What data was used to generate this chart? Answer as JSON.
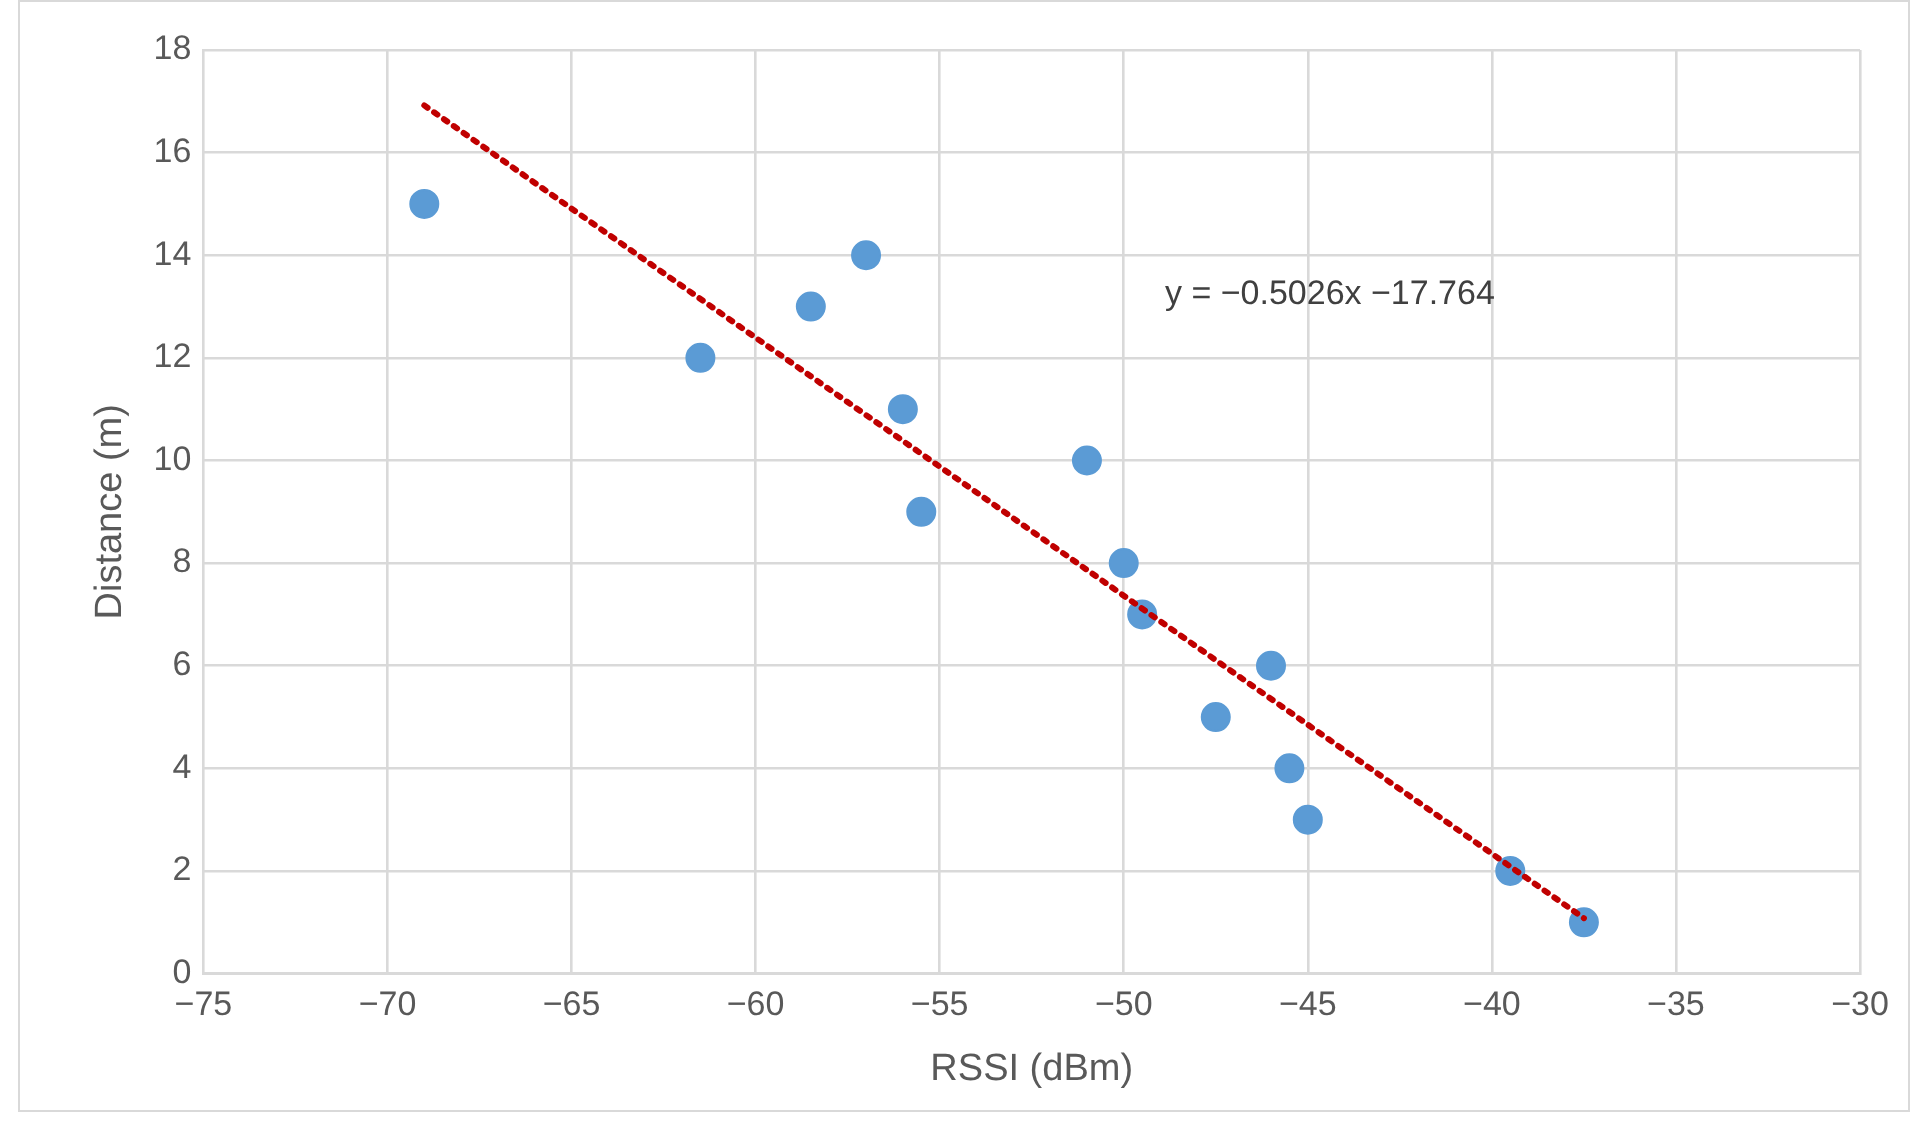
{
  "chart_data": {
    "type": "scatter",
    "xlabel": "RSSI (dBm)",
    "ylabel": "Distance (m)",
    "xlim": [
      -75,
      -30
    ],
    "xticks": [
      -75,
      -70,
      -65,
      -60,
      -55,
      -50,
      -45,
      -40,
      -35,
      -30
    ],
    "ylim": [
      0,
      18
    ],
    "yticks": [
      0,
      2,
      4,
      6,
      8,
      10,
      12,
      14,
      16,
      18
    ],
    "grid": true,
    "legend": false,
    "series": [
      {
        "marker": "circle",
        "color": "#5b9bd5",
        "x": [
          -69,
          -61.5,
          -58.5,
          -57,
          -56,
          -55.5,
          -51,
          -50,
          -49.5,
          -46,
          -47.5,
          -45.5,
          -45,
          -39.5,
          -37.5
        ],
        "values": [
          15,
          12,
          13,
          14,
          11,
          9,
          10,
          8,
          7,
          6,
          5,
          4,
          3,
          2,
          1
        ]
      },
      {
        "type": "line",
        "marker": "none",
        "color": "#c00000",
        "line_style": "dotted",
        "x": [
          -69,
          -37.5
        ],
        "values": [
          16.92,
          1.08
        ]
      }
    ],
    "annotations": [
      "y = −0.5026x −17.764"
    ]
  }
}
